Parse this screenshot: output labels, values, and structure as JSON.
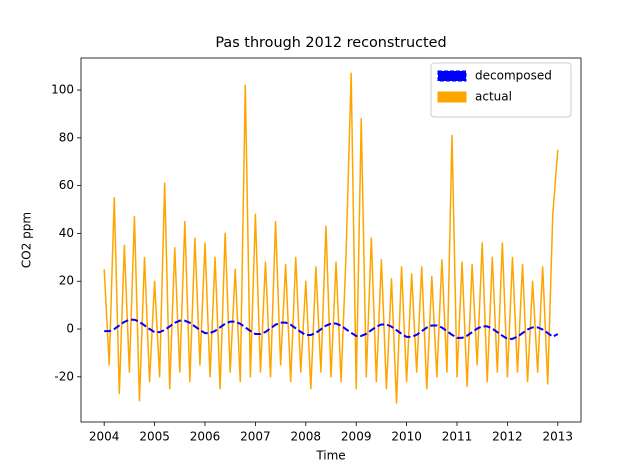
{
  "chart_data": {
    "type": "line",
    "title": "Pas through 2012 reconstructed",
    "x_label": "Time",
    "y_label": "CO2 ppm",
    "x": [
      2004.0,
      2004.1,
      2004.2,
      2004.3,
      2004.4,
      2004.5,
      2004.6,
      2004.7,
      2004.8,
      2004.9,
      2005.0,
      2005.1,
      2005.2,
      2005.3,
      2005.4,
      2005.5,
      2005.6,
      2005.7,
      2005.8,
      2005.9,
      2006.0,
      2006.1,
      2006.2,
      2006.3,
      2006.4,
      2006.5,
      2006.6,
      2006.7,
      2006.8,
      2006.9,
      2007.0,
      2007.1,
      2007.2,
      2007.3,
      2007.4,
      2007.5,
      2007.6,
      2007.7,
      2007.8,
      2007.9,
      2008.0,
      2008.1,
      2008.2,
      2008.3,
      2008.4,
      2008.5,
      2008.6,
      2008.7,
      2008.8,
      2008.9,
      2009.0,
      2009.1,
      2009.2,
      2009.3,
      2009.4,
      2009.5,
      2009.6,
      2009.7,
      2009.8,
      2009.9,
      2010.0,
      2010.1,
      2010.2,
      2010.3,
      2010.4,
      2010.5,
      2010.6,
      2010.7,
      2010.8,
      2010.9,
      2011.0,
      2011.1,
      2011.2,
      2011.3,
      2011.4,
      2011.5,
      2011.6,
      2011.7,
      2011.8,
      2011.9,
      2012.0,
      2012.1,
      2012.2,
      2012.3,
      2012.4,
      2012.5,
      2012.6,
      2012.7,
      2012.8,
      2012.9,
      2013.0
    ],
    "series": [
      {
        "name": "decomposed",
        "color": "#0000ff",
        "dashed": true,
        "values": [
          -0.9,
          -0.9,
          0,
          1.5,
          3,
          3.9,
          3.9,
          3,
          1.5,
          0,
          -1.3,
          -1.3,
          -0.4,
          1.1,
          2.6,
          3.5,
          3.5,
          2.6,
          1.1,
          -0.4,
          -1.7,
          -1.7,
          -0.8,
          0.7,
          2.2,
          3.1,
          3.1,
          2.2,
          0.7,
          -0.8,
          -2.1,
          -2.1,
          -1.2,
          0.3,
          1.8,
          2.7,
          2.7,
          1.8,
          0.3,
          -1.2,
          -2.5,
          -2.5,
          -1.6,
          -0.1,
          1.4,
          2.3,
          2.3,
          1.4,
          -0.1,
          -1.6,
          -2.9,
          -2.9,
          -2,
          -0.5,
          1,
          1.9,
          1.9,
          1,
          -0.5,
          -2,
          -3.3,
          -3.3,
          -2.4,
          -0.9,
          0.6,
          1.5,
          1.5,
          0.6,
          -0.9,
          -2.4,
          -3.7,
          -3.7,
          -2.8,
          -1.3,
          0.2,
          1.1,
          1.1,
          0.2,
          -1.3,
          -2.8,
          -4.1,
          -4.1,
          -3.2,
          -1.7,
          -0.2,
          0.7,
          0.7,
          -0.2,
          -1.7,
          -3.2,
          -2.1
        ]
      },
      {
        "name": "actual",
        "color": "#ffa500",
        "dashed": false,
        "values": [
          25,
          -15,
          55,
          -27,
          35,
          -18,
          47,
          -30,
          30,
          -22,
          20,
          -20,
          61,
          -25,
          34,
          -18,
          45,
          -22,
          38,
          -15,
          36,
          -20,
          30,
          -25,
          40,
          -18,
          25,
          -22,
          102,
          -20,
          48,
          -18,
          28,
          -20,
          45,
          -15,
          27,
          -22,
          30,
          -18,
          20,
          -25,
          26,
          -18,
          43,
          -20,
          28,
          -22,
          32,
          107,
          -25,
          88,
          -20,
          38,
          -22,
          29,
          -25,
          21,
          -31,
          26,
          -22,
          23,
          -18,
          26,
          -25,
          22,
          -20,
          29,
          -18,
          81,
          -20,
          28,
          -24,
          27,
          -15,
          36,
          -22,
          30,
          -18,
          36,
          -20,
          30,
          -18,
          27,
          -22,
          20,
          -18,
          26,
          -23,
          48,
          75
        ]
      }
    ],
    "xlim": [
      2003.54,
      2013.46
    ],
    "xticks": [
      2004,
      2005,
      2006,
      2007,
      2008,
      2009,
      2010,
      2011,
      2012,
      2013
    ],
    "ylim": [
      -38.9,
      113.4
    ],
    "yticks": [
      -20,
      0,
      20,
      40,
      60,
      80,
      100
    ],
    "legend": "upper right"
  }
}
